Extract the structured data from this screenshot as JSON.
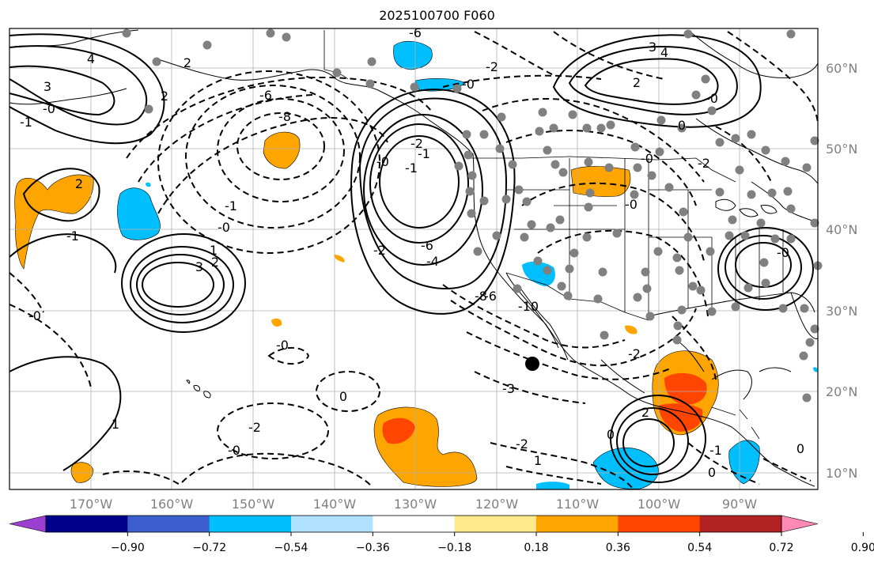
{
  "title": "2025100700 F060",
  "map": {
    "lon_range": [
      -180,
      -80
    ],
    "lat_range": [
      8,
      65
    ],
    "lon_ticks": [
      "170°W",
      "160°W",
      "150°W",
      "140°W",
      "130°W",
      "120°W",
      "110°W",
      "100°W",
      "90°W"
    ],
    "lat_ticks": [
      "60°N",
      "50°N",
      "40°N",
      "30°N",
      "20°N",
      "10°N"
    ],
    "contour_labels": [
      "4",
      "3",
      "-0",
      "2",
      "2",
      "-1",
      "2",
      "-1",
      "-0",
      "1",
      "3",
      "2",
      "-0",
      "-1",
      "-0",
      "-6",
      "-8",
      "-6",
      "-2",
      "-0",
      "-1",
      "-2",
      "-1",
      "-0",
      "-6",
      "-4",
      "-2",
      "-8",
      "-10",
      "-6",
      "-3",
      "-2",
      "1",
      "0",
      "-2",
      "-0",
      "1",
      "2",
      "3",
      "4",
      "-0",
      "0",
      "-2",
      "-0",
      "-0",
      "-2",
      "2",
      "0",
      "-1",
      "0",
      "0",
      "-0"
    ]
  },
  "colorbar": {
    "ticks": [
      "−0.90",
      "−0.72",
      "−0.54",
      "−0.36",
      "−0.18",
      "0.18",
      "0.36",
      "0.54",
      "0.72",
      "0.90"
    ],
    "colors": [
      "#9a3fcf",
      "#00008b",
      "#3a5fcd",
      "#00bfff",
      "#b0e2ff",
      "#ffffff",
      "#ffe98a",
      "#ffa500",
      "#ff4500",
      "#b22222",
      "#ff88b4"
    ]
  }
}
